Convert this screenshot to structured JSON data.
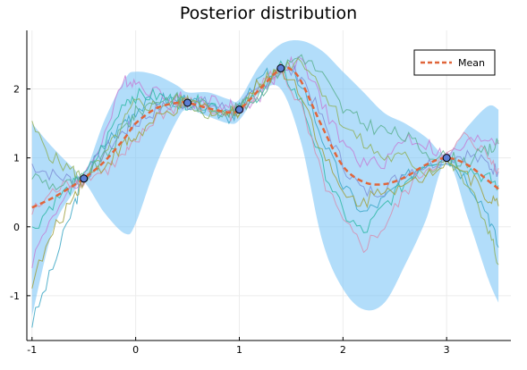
{
  "chart_data": {
    "type": "line",
    "title": "Posterior distribution",
    "xlabel": "",
    "ylabel": "",
    "xlim": [
      -1.05,
      3.62
    ],
    "ylim": [
      -1.65,
      2.85
    ],
    "grid": true,
    "legend_placement": "top-right",
    "x_ticks": [
      -1,
      0,
      1,
      2,
      3
    ],
    "y_ticks": [
      -1,
      0,
      1,
      2
    ],
    "x_tick_labels": [
      "-1",
      "0",
      "1",
      "2",
      "3"
    ],
    "y_tick_labels": [
      "-1",
      "0",
      "1",
      "2"
    ],
    "colors": {
      "band": "#7fc6f7",
      "mean": "#e0653a",
      "observation": "#5b7fd6",
      "samples": [
        "#3aa6c4",
        "#c47fd6",
        "#8fb05a",
        "#2fb8a4",
        "#7f8fd6",
        "#d68fb0",
        "#5ab08f",
        "#a0a040"
      ]
    },
    "observations": {
      "x": [
        -0.5,
        0.5,
        1.0,
        1.4,
        3.0
      ],
      "y": [
        0.7,
        1.8,
        1.7,
        2.3,
        1.0
      ]
    },
    "band": {
      "x": [
        -1.0,
        -0.8,
        -0.6,
        -0.5,
        -0.3,
        -0.1,
        0.0,
        0.2,
        0.4,
        0.5,
        0.7,
        0.9,
        1.0,
        1.2,
        1.4,
        1.6,
        1.8,
        2.0,
        2.2,
        2.4,
        2.6,
        2.8,
        3.0,
        3.2,
        3.4,
        3.5
      ],
      "upper": [
        1.5,
        1.15,
        0.85,
        0.75,
        1.55,
        2.15,
        2.25,
        2.2,
        2.05,
        1.95,
        1.95,
        1.85,
        1.85,
        2.35,
        2.65,
        2.7,
        2.55,
        2.25,
        1.95,
        1.65,
        1.5,
        1.3,
        1.05,
        1.45,
        1.75,
        1.7
      ],
      "lower": [
        -1.3,
        -0.05,
        0.5,
        0.65,
        0.2,
        -0.1,
        0.05,
        0.9,
        1.55,
        1.7,
        1.6,
        1.5,
        1.55,
        1.95,
        2.0,
        1.2,
        -0.2,
        -0.9,
        -1.2,
        -1.1,
        -0.55,
        0.1,
        0.95,
        0.15,
        -0.75,
        -1.1
      ]
    },
    "series": [
      {
        "name": "Mean",
        "x": [
          -1.0,
          -0.8,
          -0.6,
          -0.5,
          -0.3,
          -0.1,
          0.0,
          0.2,
          0.4,
          0.5,
          0.7,
          0.9,
          1.0,
          1.2,
          1.4,
          1.5,
          1.6,
          1.8,
          2.0,
          2.2,
          2.4,
          2.6,
          2.8,
          3.0,
          3.2,
          3.4,
          3.5
        ],
        "y": [
          0.28,
          0.42,
          0.6,
          0.7,
          0.95,
          1.3,
          1.5,
          1.72,
          1.8,
          1.8,
          1.72,
          1.66,
          1.7,
          2.0,
          2.3,
          2.28,
          2.1,
          1.45,
          0.88,
          0.65,
          0.62,
          0.72,
          0.9,
          1.0,
          0.9,
          0.67,
          0.55
        ]
      }
    ],
    "samples": [
      {
        "x": [
          -1.0,
          -0.8,
          -0.6,
          -0.5,
          -0.3,
          -0.1,
          0.0,
          0.2,
          0.4,
          0.5,
          0.7,
          0.9,
          1.0,
          1.2,
          1.4,
          1.6,
          1.8,
          2.0,
          2.2,
          2.4,
          2.6,
          2.8,
          3.0,
          3.2,
          3.4,
          3.5
        ],
        "y": [
          -1.4,
          -0.6,
          0.3,
          0.7,
          1.2,
          1.55,
          1.7,
          1.85,
          1.85,
          1.8,
          1.7,
          1.6,
          1.7,
          2.15,
          2.3,
          2.1,
          1.3,
          0.6,
          0.2,
          0.4,
          0.7,
          0.95,
          1.0,
          0.7,
          0.2,
          -0.3
        ]
      },
      {
        "x": [
          -1.0,
          -0.8,
          -0.6,
          -0.5,
          -0.3,
          -0.1,
          0.0,
          0.2,
          0.4,
          0.5,
          0.7,
          0.9,
          1.0,
          1.2,
          1.4,
          1.6,
          1.8,
          2.0,
          2.2,
          2.4,
          2.6,
          2.8,
          3.0,
          3.2,
          3.4,
          3.5
        ],
        "y": [
          -0.5,
          0.2,
          0.55,
          0.7,
          1.35,
          2.15,
          2.1,
          1.95,
          1.9,
          1.8,
          1.85,
          1.75,
          1.7,
          1.9,
          2.3,
          2.4,
          1.8,
          1.2,
          0.9,
          0.95,
          1.3,
          1.2,
          1.0,
          1.2,
          1.3,
          1.25
        ]
      },
      {
        "x": [
          -1.0,
          -0.8,
          -0.6,
          -0.5,
          -0.3,
          -0.1,
          0.0,
          0.2,
          0.4,
          0.5,
          0.7,
          0.9,
          1.0,
          1.2,
          1.4,
          1.6,
          1.8,
          2.0,
          2.2,
          2.4,
          2.6,
          2.8,
          3.0,
          3.2,
          3.4,
          3.5
        ],
        "y": [
          1.45,
          1.0,
          0.8,
          0.7,
          1.0,
          1.55,
          1.8,
          1.75,
          1.85,
          1.8,
          1.65,
          1.6,
          1.7,
          2.05,
          2.3,
          2.45,
          2.0,
          1.5,
          1.2,
          1.0,
          1.0,
          0.8,
          1.0,
          0.6,
          0.0,
          -0.55
        ]
      },
      {
        "x": [
          -1.0,
          -0.8,
          -0.6,
          -0.5,
          -0.3,
          -0.1,
          0.0,
          0.2,
          0.4,
          0.5,
          0.7,
          0.9,
          1.0,
          1.2,
          1.4,
          1.6,
          1.8,
          2.0,
          2.2,
          2.4,
          2.6,
          2.8,
          3.0,
          3.2,
          3.4,
          3.5
        ],
        "y": [
          -0.05,
          0.35,
          0.6,
          0.7,
          1.2,
          1.85,
          1.9,
          1.9,
          1.82,
          1.8,
          1.8,
          1.68,
          1.7,
          1.95,
          2.3,
          1.8,
          0.9,
          0.2,
          -0.1,
          0.3,
          0.65,
          0.95,
          1.0,
          0.85,
          0.7,
          0.6
        ]
      },
      {
        "x": [
          -1.0,
          -0.8,
          -0.6,
          -0.5,
          -0.3,
          -0.1,
          0.0,
          0.2,
          0.4,
          0.5,
          0.7,
          0.9,
          1.0,
          1.2,
          1.4,
          1.6,
          1.8,
          2.0,
          2.2,
          2.4,
          2.6,
          2.8,
          3.0,
          3.2,
          3.4,
          3.5
        ],
        "y": [
          0.9,
          0.75,
          0.68,
          0.7,
          1.1,
          1.4,
          1.5,
          1.7,
          1.78,
          1.8,
          1.78,
          1.7,
          1.7,
          2.0,
          2.3,
          2.2,
          1.55,
          0.9,
          0.5,
          0.55,
          0.8,
          0.9,
          1.0,
          1.05,
          0.9,
          0.8
        ]
      },
      {
        "x": [
          -1.0,
          -0.8,
          -0.6,
          -0.5,
          -0.3,
          -0.1,
          0.0,
          0.2,
          0.4,
          0.5,
          0.7,
          0.9,
          1.0,
          1.2,
          1.4,
          1.6,
          1.8,
          2.0,
          2.2,
          2.4,
          2.6,
          2.8,
          3.0,
          3.2,
          3.4,
          3.5
        ],
        "y": [
          0.2,
          0.5,
          0.65,
          0.7,
          0.8,
          1.05,
          1.2,
          1.6,
          1.75,
          1.8,
          1.7,
          1.62,
          1.7,
          2.05,
          2.3,
          1.7,
          0.7,
          0.05,
          -0.3,
          0.0,
          0.5,
          0.85,
          1.0,
          1.35,
          1.0,
          0.85
        ]
      },
      {
        "x": [
          -1.0,
          -0.8,
          -0.6,
          -0.5,
          -0.3,
          -0.1,
          0.0,
          0.2,
          0.4,
          0.5,
          0.7,
          0.9,
          1.0,
          1.2,
          1.4,
          1.6,
          1.8,
          2.0,
          2.2,
          2.4,
          2.6,
          2.8,
          3.0,
          3.2,
          3.4,
          3.5
        ],
        "y": [
          0.75,
          0.6,
          0.62,
          0.7,
          1.0,
          1.45,
          1.65,
          1.85,
          1.85,
          1.8,
          1.75,
          1.68,
          1.7,
          1.95,
          2.3,
          2.5,
          2.2,
          1.7,
          1.5,
          1.4,
          1.3,
          1.1,
          1.0,
          0.95,
          1.1,
          1.2
        ]
      },
      {
        "x": [
          -1.0,
          -0.8,
          -0.6,
          -0.5,
          -0.3,
          -0.1,
          0.0,
          0.2,
          0.4,
          0.5,
          0.7,
          0.9,
          1.0,
          1.2,
          1.4,
          1.6,
          1.8,
          2.0,
          2.2,
          2.4,
          2.6,
          2.8,
          3.0,
          3.2,
          3.4,
          3.5
        ],
        "y": [
          -0.8,
          -0.1,
          0.45,
          0.7,
          0.9,
          1.2,
          1.3,
          1.55,
          1.72,
          1.8,
          1.72,
          1.65,
          1.7,
          2.1,
          2.3,
          1.95,
          1.1,
          0.45,
          0.35,
          0.6,
          0.55,
          0.75,
          1.0,
          0.75,
          0.45,
          0.3
        ]
      }
    ]
  }
}
